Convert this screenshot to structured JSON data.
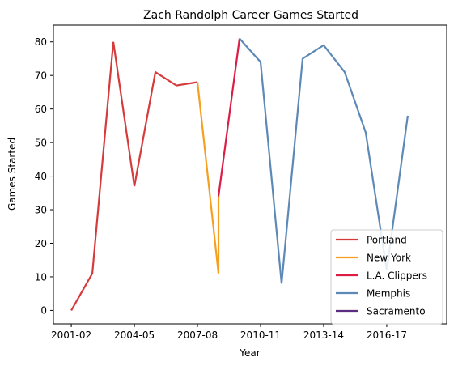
{
  "chart_data": {
    "type": "line",
    "title": "Zach Randolph Career Games Started",
    "xlabel": "Year",
    "ylabel": "Games Started",
    "x_ticks": [
      "2001-02",
      "2004-05",
      "2007-08",
      "2010-11",
      "2013-14",
      "2016-17"
    ],
    "y_ticks": [
      0,
      10,
      20,
      30,
      40,
      50,
      60,
      70,
      80
    ],
    "xlim": [
      -0.85,
      17.85
    ],
    "ylim": [
      -4,
      85
    ],
    "grid": false,
    "legend_position": "lower-right",
    "series": [
      {
        "name": "Portland",
        "color": "#d63b3b",
        "points": [
          [
            0,
            0
          ],
          [
            1,
            11
          ],
          [
            2,
            80
          ],
          [
            3,
            37
          ],
          [
            4,
            71
          ],
          [
            5,
            67
          ],
          [
            6,
            68
          ]
        ]
      },
      {
        "name": "New York",
        "color": "#f5a020",
        "points": [
          [
            6,
            68
          ],
          [
            7,
            11
          ],
          [
            7,
            34
          ]
        ]
      },
      {
        "name": "L.A. Clippers",
        "color": "#dc1e47",
        "points": [
          [
            7,
            34
          ],
          [
            8,
            81
          ]
        ]
      },
      {
        "name": "Memphis",
        "color": "#5d89b7",
        "points": [
          [
            8,
            81
          ],
          [
            9,
            74
          ],
          [
            10,
            8
          ],
          [
            11,
            75
          ],
          [
            12,
            79
          ],
          [
            13,
            71
          ],
          [
            14,
            53
          ],
          [
            15,
            12
          ],
          [
            16,
            58
          ]
        ]
      },
      {
        "name": "Sacramento",
        "color": "#5a2d81",
        "points": []
      }
    ]
  }
}
